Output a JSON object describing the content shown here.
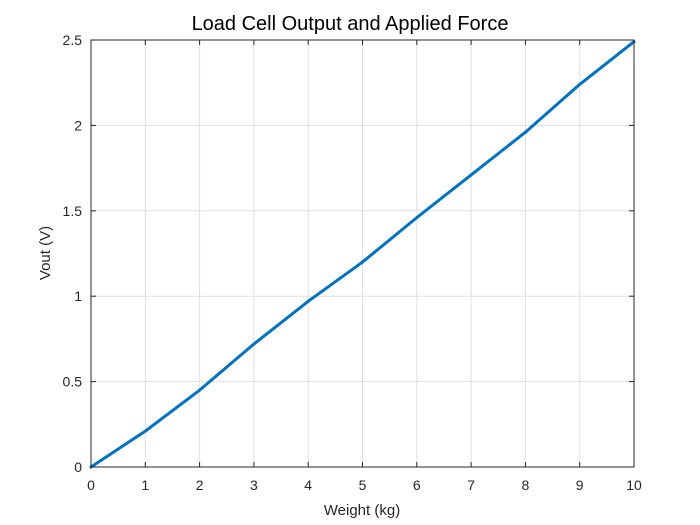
{
  "chart_data": {
    "type": "line",
    "title": "Load Cell Output and Applied Force",
    "xlabel": "Weight (kg)",
    "ylabel": "Vout (V)",
    "xlim": [
      0,
      10
    ],
    "ylim": [
      0,
      2.5
    ],
    "grid": true,
    "x_ticks": [
      0,
      1,
      2,
      3,
      4,
      5,
      6,
      7,
      8,
      9,
      10
    ],
    "x_tick_labels": [
      "0",
      "1",
      "2",
      "3",
      "4",
      "5",
      "6",
      "7",
      "8",
      "9",
      "10"
    ],
    "y_ticks": [
      0,
      0.5,
      1,
      1.5,
      2,
      2.5
    ],
    "y_tick_labels": [
      "0",
      "0.5",
      "1",
      "1.5",
      "2",
      "2.5"
    ],
    "series": [
      {
        "color": "#0072BD",
        "x": [
          0,
          1,
          2,
          3,
          4,
          5,
          6,
          7,
          8,
          9,
          10
        ],
        "y": [
          0,
          0.21,
          0.45,
          0.72,
          0.97,
          1.2,
          1.46,
          1.71,
          1.96,
          2.24,
          2.49
        ]
      }
    ]
  }
}
